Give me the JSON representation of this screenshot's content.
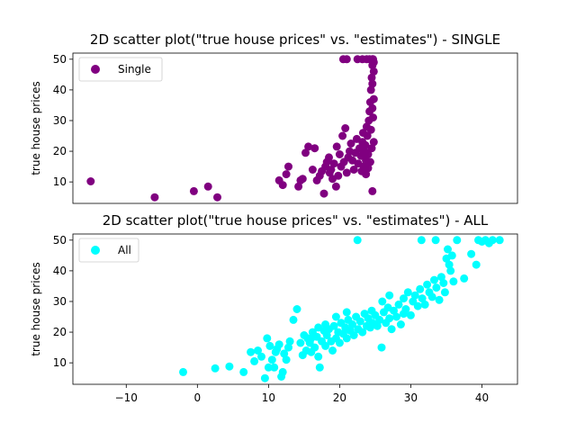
{
  "chart_data": [
    {
      "type": "scatter",
      "title": "2D scatter plot(\"true house prices\" vs. \"estimates\") - SINGLE",
      "xlabel": "",
      "ylabel": "true house prices",
      "xlim": [
        -17.5,
        45
      ],
      "ylim": [
        3,
        52
      ],
      "xticks": [],
      "yticks": [
        10,
        20,
        30,
        40,
        50
      ],
      "grid": false,
      "legend": "top-left",
      "series": [
        {
          "name": "Single",
          "color": "#800080",
          "points": [
            [
              -15,
              10.2
            ],
            [
              -6,
              5
            ],
            [
              -0.5,
              7
            ],
            [
              1.5,
              8.5
            ],
            [
              2.8,
              5
            ],
            [
              11.5,
              10.5
            ],
            [
              12,
              9
            ],
            [
              12.5,
              12.5
            ],
            [
              12.8,
              15
            ],
            [
              14.2,
              8.5
            ],
            [
              14.5,
              10.5
            ],
            [
              14.8,
              11
            ],
            [
              15.2,
              19.5
            ],
            [
              15.6,
              21.5
            ],
            [
              16.2,
              14
            ],
            [
              16.5,
              21
            ],
            [
              16.8,
              10.5
            ],
            [
              17.2,
              12
            ],
            [
              17.5,
              13.5
            ],
            [
              17.8,
              6.2
            ],
            [
              18,
              15
            ],
            [
              18.2,
              16.5
            ],
            [
              18.5,
              18
            ],
            [
              18.6,
              13
            ],
            [
              18.8,
              14
            ],
            [
              19,
              11
            ],
            [
              19.2,
              16
            ],
            [
              19.5,
              8.5
            ],
            [
              19.6,
              21.5
            ],
            [
              19.8,
              12
            ],
            [
              20,
              19
            ],
            [
              20.2,
              15
            ],
            [
              20.4,
              25
            ],
            [
              20.6,
              16.5
            ],
            [
              20.8,
              27.5
            ],
            [
              21,
              13
            ],
            [
              21.2,
              18
            ],
            [
              21.4,
              20
            ],
            [
              21.6,
              22.5
            ],
            [
              21.8,
              17
            ],
            [
              22,
              14
            ],
            [
              22.2,
              19.5
            ],
            [
              22.4,
              24
            ],
            [
              22.6,
              16
            ],
            [
              22.8,
              21
            ],
            [
              23,
              18.5
            ],
            [
              23.1,
              13.5
            ],
            [
              23.2,
              23
            ],
            [
              23.3,
              26
            ],
            [
              23.4,
              15
            ],
            [
              23.5,
              20
            ],
            [
              23.6,
              22
            ],
            [
              23.7,
              17
            ],
            [
              23.8,
              28
            ],
            [
              23.9,
              25
            ],
            [
              24,
              19
            ],
            [
              24.1,
              30
            ],
            [
              24.2,
              33
            ],
            [
              24.3,
              36
            ],
            [
              24.4,
              40
            ],
            [
              24.5,
              44
            ],
            [
              24.6,
              48
            ],
            [
              24.6,
              7
            ],
            [
              24.7,
              50
            ],
            [
              24.7,
              31
            ],
            [
              24.8,
              46
            ],
            [
              24.8,
              37
            ],
            [
              24.8,
              23
            ],
            [
              24.5,
              21
            ],
            [
              24.3,
              16.5
            ],
            [
              24.0,
              14.5
            ],
            [
              23.7,
              12.5
            ],
            [
              24.4,
              27
            ],
            [
              24.6,
              34
            ],
            [
              24.6,
              42
            ],
            [
              20.5,
              50
            ],
            [
              21,
              50
            ],
            [
              22.5,
              50
            ],
            [
              23.2,
              50
            ],
            [
              23.8,
              50
            ],
            [
              24.2,
              50
            ],
            [
              24.6,
              50
            ],
            [
              24.8,
              49
            ]
          ]
        }
      ]
    },
    {
      "type": "scatter",
      "title": "2D scatter plot(\"true house prices\" vs. \"estimates\") - ALL",
      "xlabel": "",
      "ylabel": "true house prices",
      "xlim": [
        -17.5,
        45
      ],
      "ylim": [
        3,
        52
      ],
      "xticks": [
        -10,
        0,
        10,
        20,
        30,
        40
      ],
      "yticks": [
        10,
        20,
        30,
        40,
        50
      ],
      "grid": false,
      "legend": "top-left",
      "series": [
        {
          "name": "All",
          "color": "#00ffff",
          "points": [
            [
              -2,
              7
            ],
            [
              2.5,
              8.2
            ],
            [
              4.5,
              8.8
            ],
            [
              6.5,
              7
            ],
            [
              7.5,
              13.5
            ],
            [
              8,
              10.5
            ],
            [
              8.5,
              14
            ],
            [
              9,
              12
            ],
            [
              9.5,
              5
            ],
            [
              9.8,
              18
            ],
            [
              10,
              8.5
            ],
            [
              10.2,
              15.5
            ],
            [
              10.5,
              11
            ],
            [
              10.8,
              8.5
            ],
            [
              11,
              13.5
            ],
            [
              11.2,
              14.5
            ],
            [
              11.5,
              16
            ],
            [
              11.8,
              5.5
            ],
            [
              12,
              7
            ],
            [
              12.2,
              13
            ],
            [
              12.5,
              11
            ],
            [
              12.8,
              15
            ],
            [
              13,
              17
            ],
            [
              13.5,
              24
            ],
            [
              14,
              27.5
            ],
            [
              14.5,
              16.5
            ],
            [
              14.8,
              12.5
            ],
            [
              15,
              19
            ],
            [
              15.3,
              14
            ],
            [
              15.5,
              18
            ],
            [
              15.8,
              16.5
            ],
            [
              16,
              13.5
            ],
            [
              16.2,
              20
            ],
            [
              16.5,
              15
            ],
            [
              16.8,
              18.5
            ],
            [
              17,
              12
            ],
            [
              17.2,
              8.5
            ],
            [
              17.5,
              17
            ],
            [
              17.8,
              20.5
            ],
            [
              18,
              15.5
            ],
            [
              18.2,
              19
            ],
            [
              18.5,
              21
            ],
            [
              18.8,
              17
            ],
            [
              19,
              14
            ],
            [
              19.2,
              22
            ],
            [
              19.5,
              18
            ],
            [
              19.8,
              20
            ],
            [
              20,
              16.5
            ],
            [
              20.2,
              23
            ],
            [
              20.5,
              19.5
            ],
            [
              20.8,
              21.5
            ],
            [
              21,
              18
            ],
            [
              21.2,
              24
            ],
            [
              21.5,
              20.5
            ],
            [
              21.8,
              22.5
            ],
            [
              22,
              19
            ],
            [
              22.3,
              25
            ],
            [
              22.6,
              21
            ],
            [
              22.9,
              23.5
            ],
            [
              23.2,
              20
            ],
            [
              23.5,
              26
            ],
            [
              23.8,
              22
            ],
            [
              24,
              24.5
            ],
            [
              24.3,
              21.5
            ],
            [
              24.6,
              23
            ],
            [
              25,
              25.5
            ],
            [
              25.3,
              22
            ],
            [
              25.6,
              24
            ],
            [
              25.9,
              15
            ],
            [
              26.2,
              26.5
            ],
            [
              26.5,
              23
            ],
            [
              26.8,
              28
            ],
            [
              27,
              24.5
            ],
            [
              27.3,
              21
            ],
            [
              27.6,
              27
            ],
            [
              28,
              25
            ],
            [
              28.3,
              29
            ],
            [
              28.6,
              22.5
            ],
            [
              29,
              31
            ],
            [
              29.3,
              27.5
            ],
            [
              29.6,
              33
            ],
            [
              30,
              25.5
            ],
            [
              30.3,
              30
            ],
            [
              30.6,
              32
            ],
            [
              31,
              28.5
            ],
            [
              31.3,
              34
            ],
            [
              31.6,
              31
            ],
            [
              32,
              29
            ],
            [
              32.3,
              35.5
            ],
            [
              32.6,
              33
            ],
            [
              33,
              31.5
            ],
            [
              33.3,
              37
            ],
            [
              33.6,
              34.5
            ],
            [
              34,
              30.5
            ],
            [
              34.3,
              38
            ],
            [
              34.6,
              36
            ],
            [
              34.8,
              33
            ],
            [
              35,
              44
            ],
            [
              35.2,
              47
            ],
            [
              35.4,
              42
            ],
            [
              35.6,
              40
            ],
            [
              35.8,
              45
            ],
            [
              36.5,
              50
            ],
            [
              36,
              36.5
            ],
            [
              37.5,
              37.5
            ],
            [
              38.5,
              45.5
            ],
            [
              39.2,
              42
            ],
            [
              22.5,
              50
            ],
            [
              31.5,
              50
            ],
            [
              33.5,
              50
            ],
            [
              39.5,
              50
            ],
            [
              40,
              49.5
            ],
            [
              40.5,
              50
            ],
            [
              41,
              49
            ],
            [
              41.5,
              50
            ],
            [
              42.5,
              50
            ],
            [
              26,
              30
            ],
            [
              27,
              32
            ],
            [
              24.5,
              27
            ],
            [
              29,
              26
            ],
            [
              21,
              26.5
            ],
            [
              19.5,
              25
            ],
            [
              18,
              22.5
            ],
            [
              17,
              21.5
            ],
            [
              16,
              18
            ]
          ]
        }
      ]
    }
  ]
}
